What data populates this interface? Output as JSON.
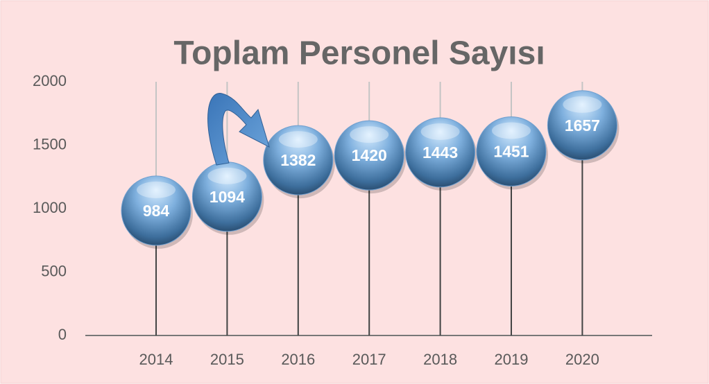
{
  "chart_data": {
    "type": "dot",
    "title": "Toplam Personel Sayısı",
    "categories": [
      "2014",
      "2015",
      "2016",
      "2017",
      "2018",
      "2019",
      "2020"
    ],
    "values": [
      984,
      1094,
      1382,
      1420,
      1443,
      1451,
      1657
    ],
    "color": "#6f9fcf",
    "ylim": [
      0,
      2000
    ],
    "yticks": [
      0,
      500,
      1000,
      1500,
      2000
    ],
    "grid": true
  }
}
